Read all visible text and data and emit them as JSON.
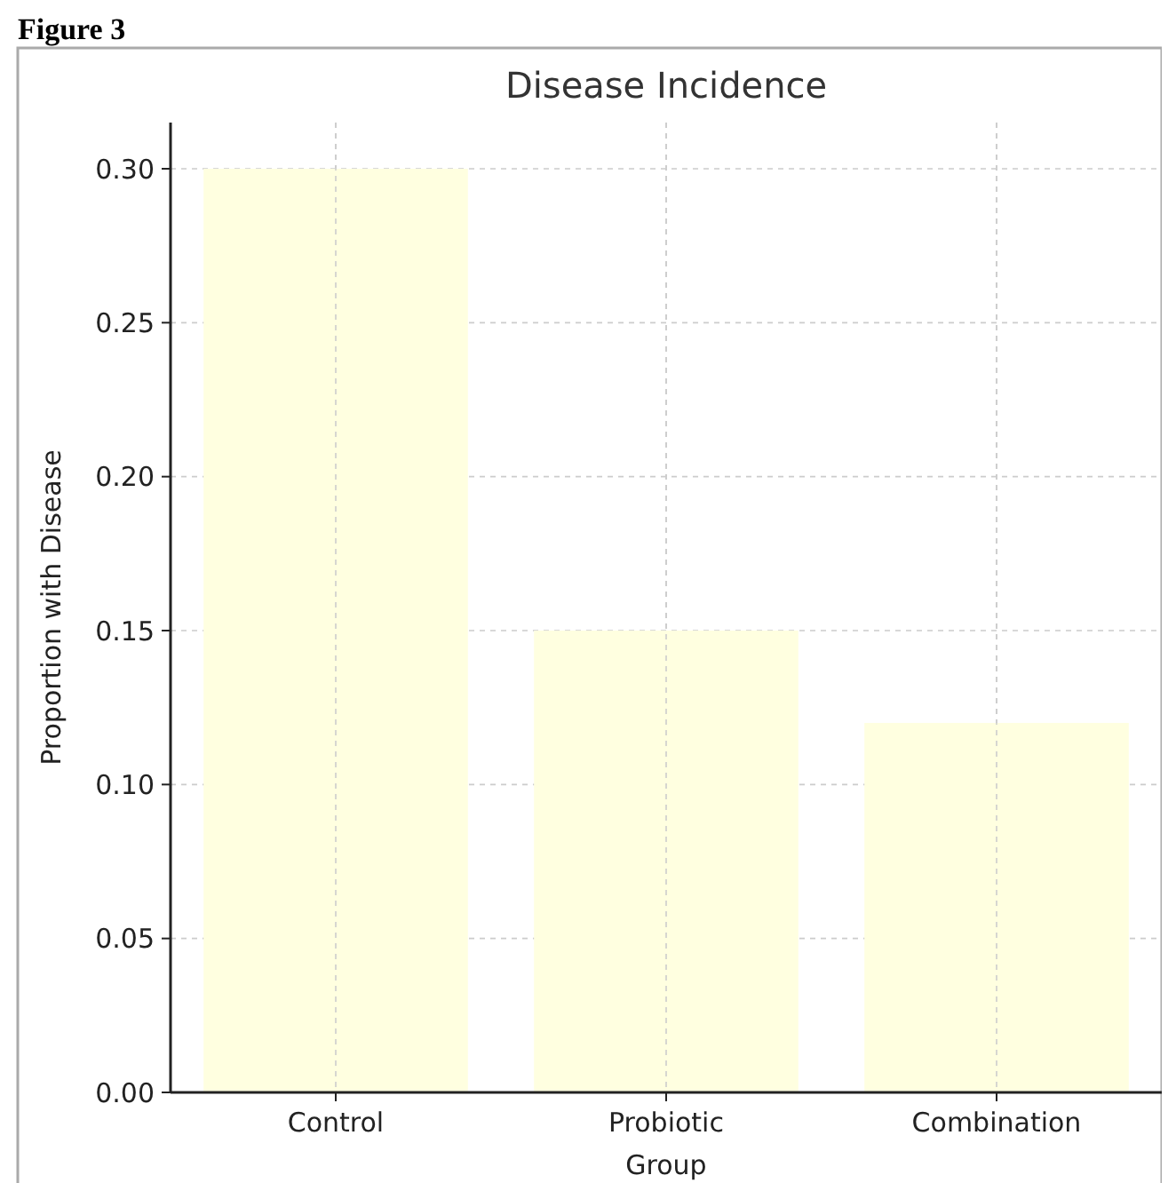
{
  "chart_data": {
    "type": "bar",
    "title": "Disease Incidence",
    "xlabel": "Group",
    "ylabel": "Proportion with Disease",
    "annotations": [
      "Figure 3"
    ],
    "categories": [
      "Control",
      "Probiotic",
      "Combination"
    ],
    "values": [
      0.3,
      0.15,
      0.12
    ],
    "color": "#ffffe0",
    "ylim": [
      0,
      0.315
    ],
    "yticks": [
      {
        "value": 0,
        "label": "0.00"
      },
      {
        "value": 0.05,
        "label": "0.05"
      },
      {
        "value": 0.1,
        "label": "0.10"
      },
      {
        "value": 0.15,
        "label": "0.15"
      },
      {
        "value": 0.2,
        "label": "0.20"
      },
      {
        "value": 0.25,
        "label": "0.25"
      },
      {
        "value": 0.3,
        "label": "0.30"
      }
    ],
    "grid": true
  }
}
